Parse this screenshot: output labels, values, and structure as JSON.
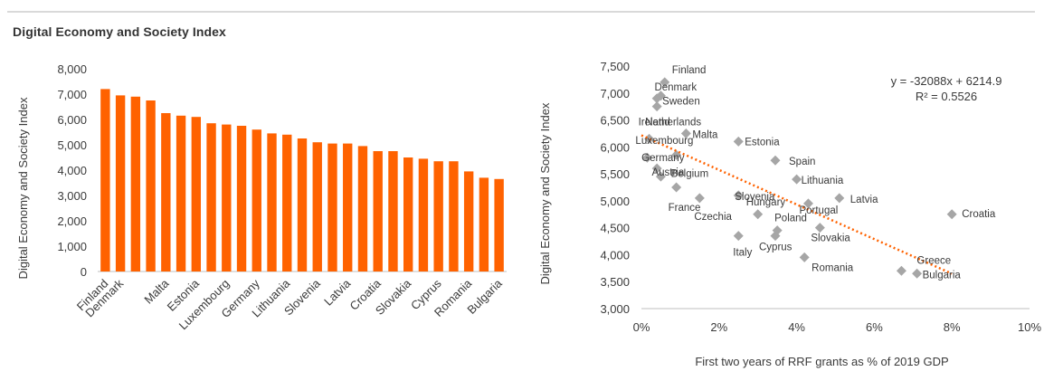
{
  "title": "Digital Economy and Society Index",
  "chart_data": [
    {
      "type": "bar",
      "ylabel": "Digital Economy and Society Index",
      "xlabel": "",
      "ylim": [
        0,
        8000
      ],
      "yticks": [
        0,
        1000,
        2000,
        3000,
        4000,
        5000,
        6000,
        7000,
        8000
      ],
      "ytick_labels": [
        "0",
        "1,000",
        "2,000",
        "3,000",
        "4,000",
        "5,000",
        "6,000",
        "7,000",
        "8,000"
      ],
      "grid": false,
      "color": "#ff6200",
      "categories": [
        "Finland",
        "Denmark",
        "Sweden",
        "Netherlands",
        "Malta",
        "Ireland",
        "Estonia",
        "Belgium",
        "Luxembourg",
        "Spain",
        "Germany",
        "Austria",
        "Lithuania",
        "France",
        "Slovenia",
        "Czechia",
        "Latvia",
        "Portugal",
        "Croatia",
        "Hungary",
        "Slovakia",
        "Poland",
        "Cyprus",
        "Italy",
        "Romania",
        "Greece",
        "Bulgaria"
      ],
      "labeled_categories": [
        "Finland",
        "Denmark",
        "Malta",
        "Estonia",
        "Luxembourg",
        "Germany",
        "Lithuania",
        "Slovenia",
        "Latvia",
        "Croatia",
        "Slovakia",
        "Cyprus",
        "Romania",
        "Bulgaria"
      ],
      "values": [
        7200,
        6950,
        6900,
        6750,
        6250,
        6150,
        6100,
        5850,
        5800,
        5750,
        5600,
        5450,
        5400,
        5250,
        5100,
        5050,
        5050,
        4950,
        4750,
        4750,
        4500,
        4450,
        4350,
        4350,
        3950,
        3700,
        3650
      ]
    },
    {
      "type": "scatter",
      "xlabel": "First two years of RRF grants as % of 2019 GDP",
      "ylabel": "Digital Economy and Society Index",
      "xlim": [
        0,
        0.1
      ],
      "ylim": [
        3000,
        7500
      ],
      "xticks": [
        0,
        0.02,
        0.04,
        0.06,
        0.08,
        0.1
      ],
      "xtick_labels": [
        "0%",
        "2%",
        "4%",
        "6%",
        "8%",
        "10%"
      ],
      "yticks": [
        3000,
        3500,
        4000,
        4500,
        5000,
        5500,
        6000,
        6500,
        7000,
        7500
      ],
      "ytick_labels": [
        "3,000",
        "3,500",
        "4,000",
        "4,500",
        "5,000",
        "5,500",
        "6,000",
        "6,500",
        "7,000",
        "7,500"
      ],
      "grid": false,
      "marker_color": "#a6a6a6",
      "trendline_color": "#ff6200",
      "equation": "y = -32088x + 6214.9",
      "r_squared": "R² = 0.5526",
      "trendline": {
        "slope": -32088,
        "intercept": 6214.9,
        "x_range": [
          0,
          0.08
        ]
      },
      "points": [
        {
          "label": "Finland",
          "x": 0.006,
          "y": 7200
        },
        {
          "label": "Denmark",
          "x": 0.005,
          "y": 6950
        },
        {
          "label": "Sweden",
          "x": 0.004,
          "y": 6900
        },
        {
          "label": "Netherlands",
          "x": 0.004,
          "y": 6750
        },
        {
          "label": "Malta",
          "x": 0.0115,
          "y": 6250
        },
        {
          "label": "Ireland",
          "x": 0.002,
          "y": 6150
        },
        {
          "label": "Estonia",
          "x": 0.025,
          "y": 6100
        },
        {
          "label": "Belgium",
          "x": 0.009,
          "y": 5850
        },
        {
          "label": "Luxembourg",
          "x": 0.0015,
          "y": 5800
        },
        {
          "label": "Spain",
          "x": 0.0345,
          "y": 5750
        },
        {
          "label": "Germany",
          "x": 0.004,
          "y": 5600
        },
        {
          "label": "Austria",
          "x": 0.005,
          "y": 5450
        },
        {
          "label": "Lithuania",
          "x": 0.04,
          "y": 5400
        },
        {
          "label": "France",
          "x": 0.009,
          "y": 5250
        },
        {
          "label": "Slovenia",
          "x": 0.025,
          "y": 5100
        },
        {
          "label": "Czechia",
          "x": 0.015,
          "y": 5050
        },
        {
          "label": "Latvia",
          "x": 0.051,
          "y": 5050
        },
        {
          "label": "Portugal",
          "x": 0.043,
          "y": 4950
        },
        {
          "label": "Croatia",
          "x": 0.08,
          "y": 4750
        },
        {
          "label": "Hungary",
          "x": 0.03,
          "y": 4750
        },
        {
          "label": "Slovakia",
          "x": 0.046,
          "y": 4500
        },
        {
          "label": "Poland",
          "x": 0.035,
          "y": 4450
        },
        {
          "label": "Cyprus",
          "x": 0.0345,
          "y": 4350
        },
        {
          "label": "Italy",
          "x": 0.025,
          "y": 4350
        },
        {
          "label": "Romania",
          "x": 0.042,
          "y": 3950
        },
        {
          "label": "Greece",
          "x": 0.067,
          "y": 3700
        },
        {
          "label": "Bulgaria",
          "x": 0.071,
          "y": 3650
        }
      ]
    }
  ]
}
